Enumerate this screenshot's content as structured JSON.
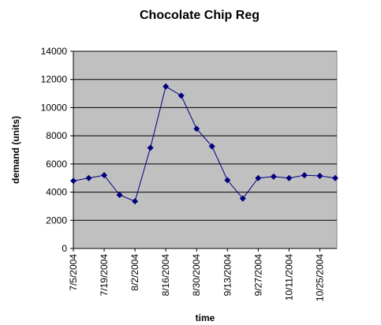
{
  "chart_data": {
    "type": "line",
    "title": "Chocolate Chip Reg",
    "x_label": "time",
    "y_label": "demand (units)",
    "categories": [
      "7/5/2004",
      null,
      "7/19/2004",
      null,
      "8/2/2004",
      null,
      "8/16/2004",
      null,
      "8/30/2004",
      null,
      "9/13/2004",
      null,
      "9/27/2004",
      null,
      "10/11/2004",
      null,
      "10/25/2004",
      null
    ],
    "series": [
      {
        "name": "demand",
        "color": "#000080",
        "values": [
          4800,
          5000,
          5200,
          3800,
          3350,
          7150,
          11500,
          10850,
          8500,
          7250,
          4850,
          3550,
          5000,
          5100,
          5000,
          5200,
          5150,
          5000
        ]
      }
    ],
    "ylim": [
      0,
      14000
    ],
    "yticks": [
      0,
      2000,
      4000,
      6000,
      8000,
      10000,
      12000,
      14000
    ],
    "grid": true,
    "plot_background": "#c0c0c0"
  }
}
